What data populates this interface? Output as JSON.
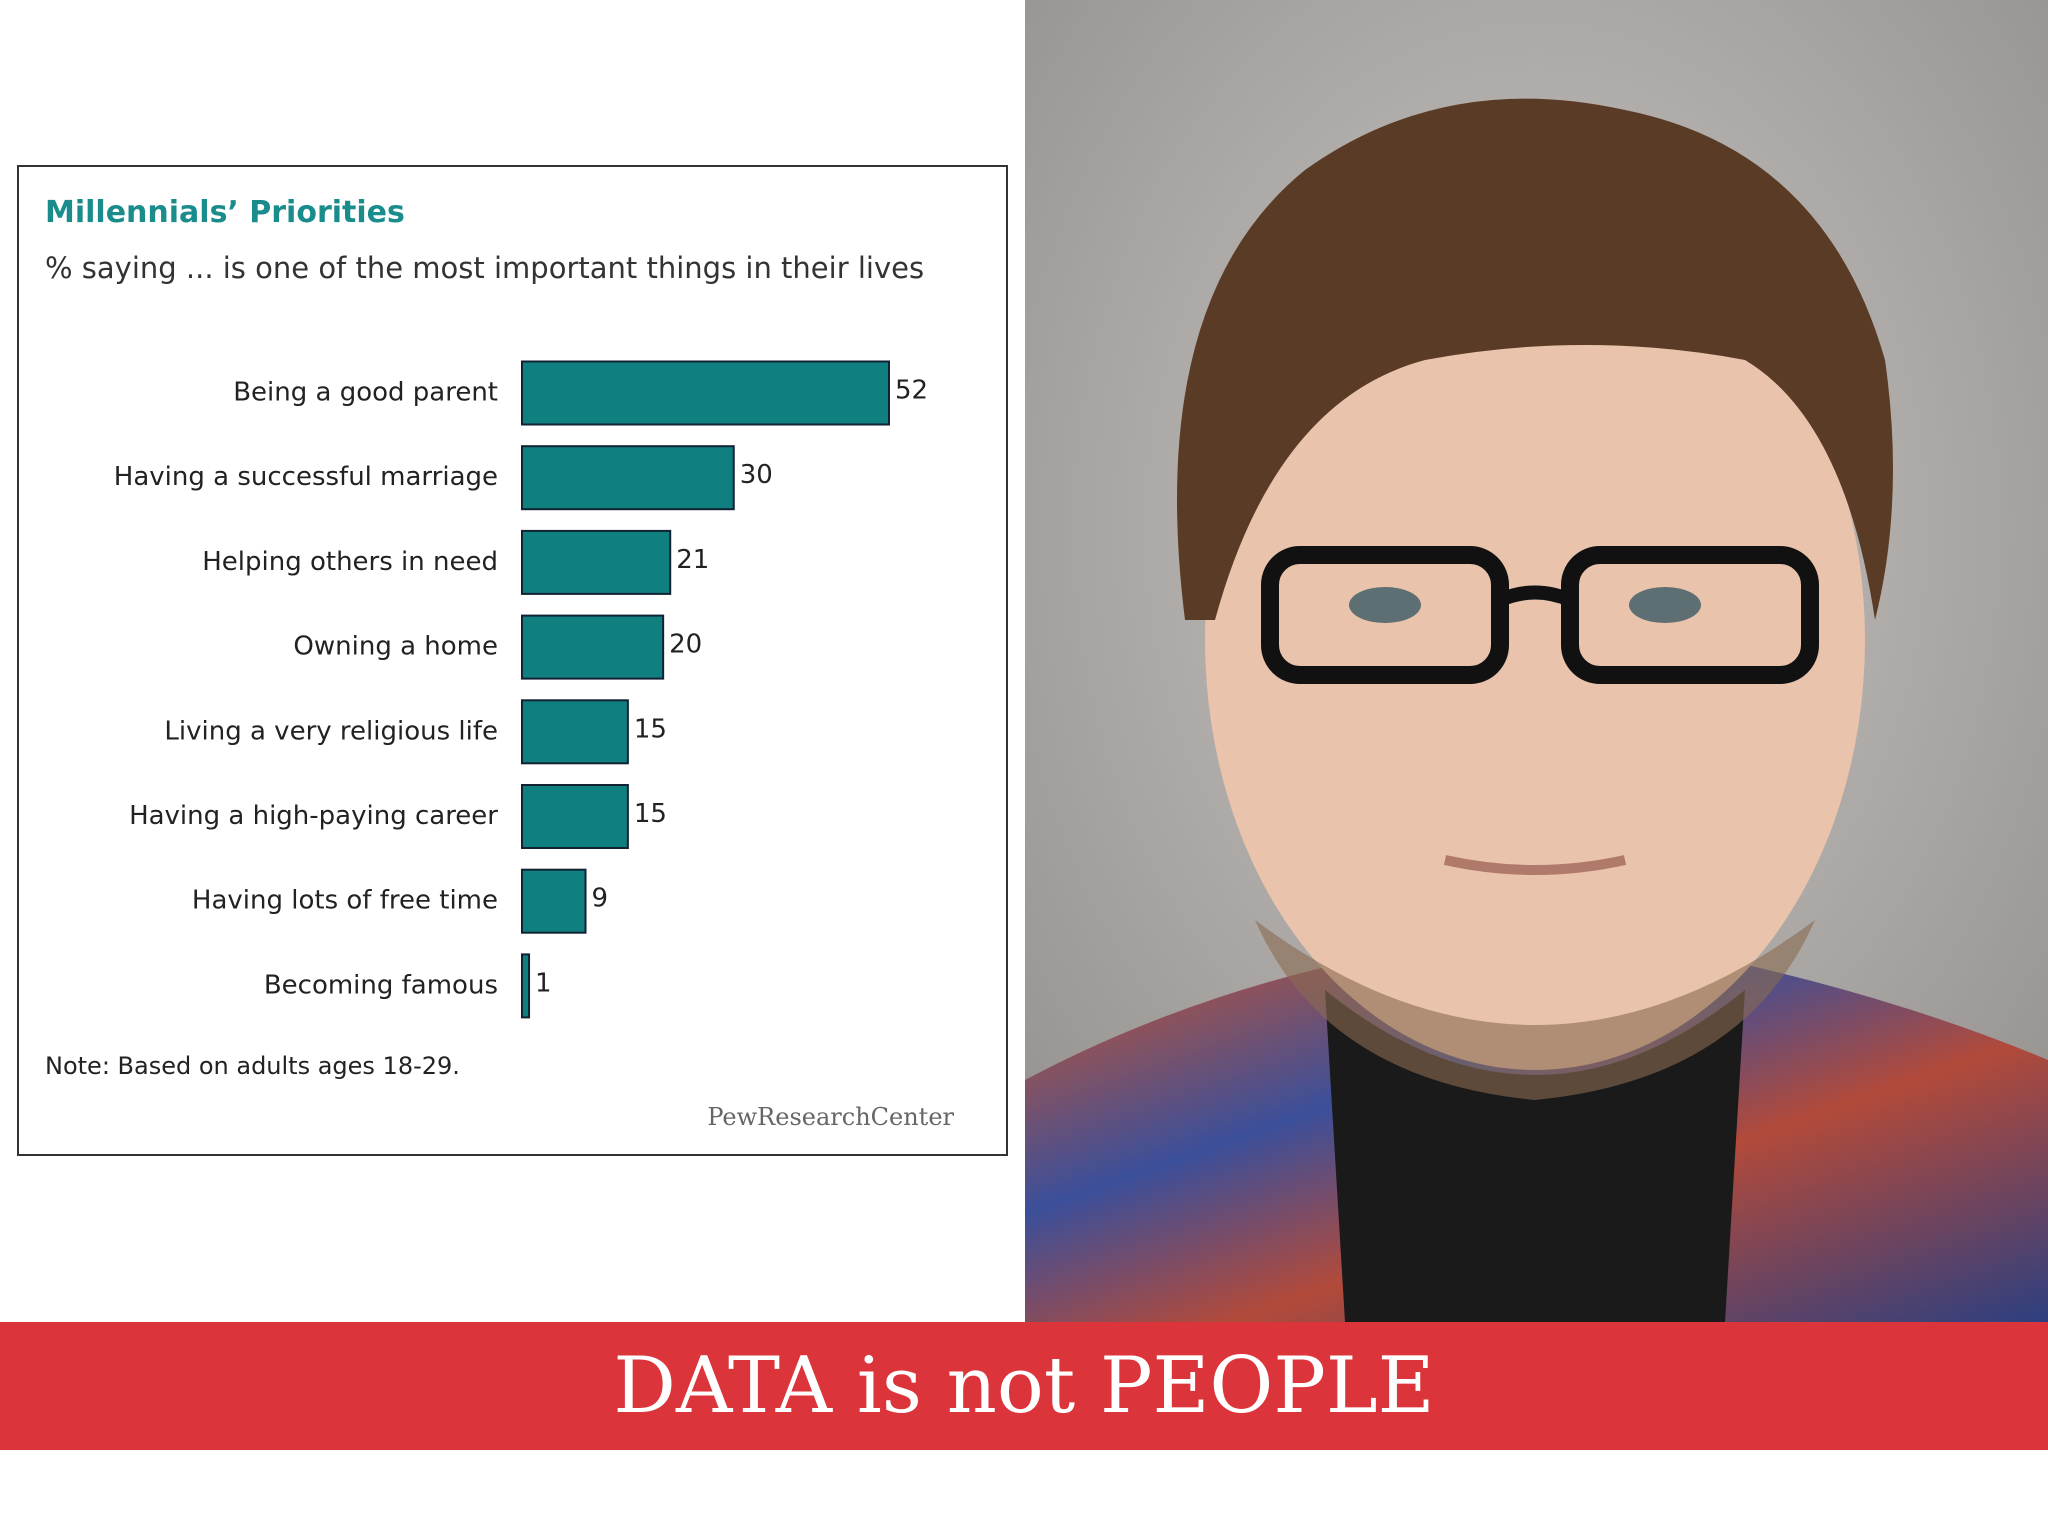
{
  "chart_data": {
    "type": "bar",
    "orientation": "horizontal",
    "title": "Millennials’ Priorities",
    "subtitle": "% saying ... is one of the most important things in their lives",
    "categories": [
      "Being a good parent",
      "Having a successful marriage",
      "Helping others in need",
      "Owning a home",
      "Living a very religious life",
      "Having a high-paying career",
      "Having lots of free time",
      "Becoming famous"
    ],
    "values": [
      52,
      30,
      21,
      20,
      15,
      15,
      9,
      1
    ],
    "color": "#0f7f7f",
    "note": "Note: Based on adults ages 18-29.",
    "source": "PewResearchCenter"
  },
  "banner": {
    "text": "DATA is not PEOPLE"
  }
}
